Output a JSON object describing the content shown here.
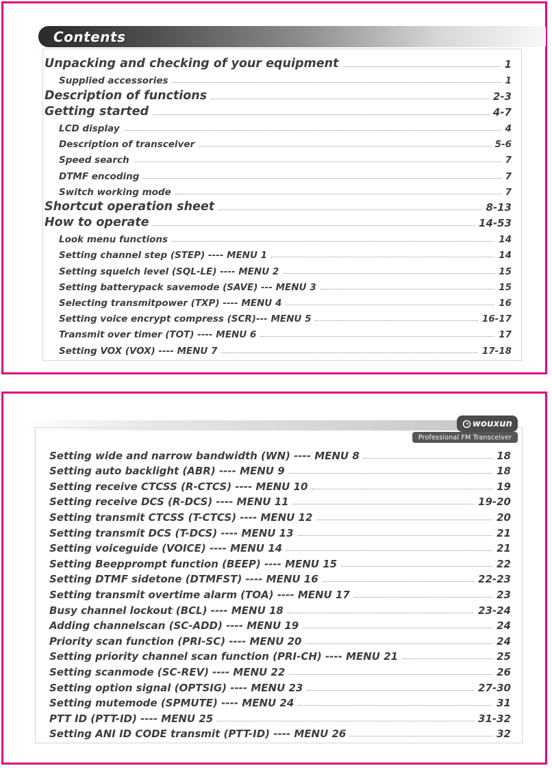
{
  "colors": {
    "border_pink": "#e0077c",
    "text_gray": "#3d3d3d",
    "header_bar_dark": "#2b2b2b",
    "header_bar_light": "#f8f8f8",
    "badge_gray": "#4b4b4b",
    "frame_border": "#c9dbd0"
  },
  "page1": {
    "title": "Contents",
    "entries": [
      {
        "label": "Unpacking and checking of your equipment",
        "page": "1",
        "level": 1
      },
      {
        "label": "Supplied accessories",
        "page": "1",
        "level": 2
      },
      {
        "label": "Description of functions",
        "page": "2-3",
        "level": 1
      },
      {
        "label": "Getting started",
        "page": "4-7",
        "level": 1
      },
      {
        "label": "LCD display",
        "page": "4",
        "level": 2
      },
      {
        "label": "Description of transceiver",
        "page": "5-6",
        "level": 2
      },
      {
        "label": "Speed search",
        "page": "7",
        "level": 2
      },
      {
        "label": "DTMF encoding",
        "page": "7",
        "level": 2
      },
      {
        "label": "Switch working mode",
        "page": "7",
        "level": 2
      },
      {
        "label": "Shortcut operation sheet",
        "page": "8-13",
        "level": 1
      },
      {
        "label": "How to operate",
        "page": "14-53",
        "level": 1
      },
      {
        "label": "Look menu functions",
        "page": "14",
        "level": 2
      },
      {
        "label": "Setting channel step (STEP) ---- MENU 1",
        "page": "14",
        "level": 2
      },
      {
        "label": "Setting squelch level (SQL-LE) ---- MENU 2",
        "page": "15",
        "level": 2
      },
      {
        "label": "Setting batterypack savemode (SAVE) --- MENU 3",
        "page": "15",
        "level": 2
      },
      {
        "label": "Selecting transmitpower (TXP) ---- MENU 4",
        "page": "16",
        "level": 2
      },
      {
        "label": "Setting voice encrypt compress (SCR)--- MENU 5",
        "page": "16-17",
        "level": 2
      },
      {
        "label": "Transmit over timer (TOT) ---- MENU 6",
        "page": "17",
        "level": 2
      },
      {
        "label": "Setting VOX (VOX) ---- MENU 7",
        "page": "17-18",
        "level": 2
      }
    ]
  },
  "page2": {
    "brand": "wouxun",
    "tagline": "Professional FM Transceiver",
    "entries": [
      {
        "label": "Setting wide and narrow bandwidth (WN) ---- MENU 8",
        "page": "18"
      },
      {
        "label": "Setting auto backlight (ABR) ---- MENU 9",
        "page": "18"
      },
      {
        "label": "Setting receive CTCSS (R-CTCS) ---- MENU 10",
        "page": "19"
      },
      {
        "label": "Setting receive DCS (R-DCS) ---- MENU 11",
        "page": "19-20"
      },
      {
        "label": "Setting transmit CTCSS (T-CTCS) ---- MENU 12",
        "page": "20"
      },
      {
        "label": "Setting transmit DCS (T-DCS) ---- MENU 13",
        "page": "21"
      },
      {
        "label": "Setting voiceguide (VOICE) ---- MENU 14",
        "page": "21"
      },
      {
        "label": "Setting Beepprompt function (BEEP) ---- MENU 15",
        "page": "22"
      },
      {
        "label": "Setting DTMF sidetone (DTMFST) ---- MENU 16",
        "page": "22-23"
      },
      {
        "label": "Setting transmit overtime alarm (TOA) ---- MENU 17",
        "page": "23"
      },
      {
        "label": "Busy channel lockout (BCL) ---- MENU 18",
        "page": "23-24"
      },
      {
        "label": "Adding channelscan (SC-ADD) ---- MENU 19",
        "page": "24"
      },
      {
        "label": "Priority scan function (PRI-SC) ---- MENU 20",
        "page": "24"
      },
      {
        "label": "Setting priority channel scan function (PRI-CH) ---- MENU 21",
        "page": "25"
      },
      {
        "label": "Setting scanmode (SC-REV) ---- MENU 22",
        "page": "26"
      },
      {
        "label": "Setting option signal (OPTSIG) ---- MENU 23",
        "page": "27-30"
      },
      {
        "label": "Setting mutemode (SPMUTE) ---- MENU 24",
        "page": "31"
      },
      {
        "label": "PTT ID (PTT-ID) ---- MENU 25",
        "page": "31-32"
      },
      {
        "label": "Setting ANI ID CODE transmit (PTT-ID) ---- MENU 26",
        "page": "32"
      }
    ]
  }
}
